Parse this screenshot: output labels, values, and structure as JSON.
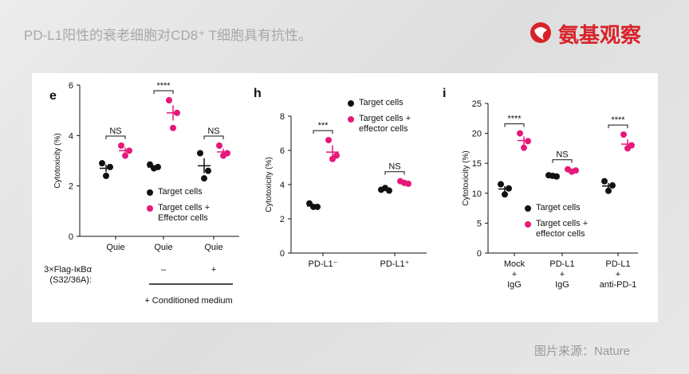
{
  "header": {
    "title": "PD-L1阳性的衰老细胞对CD8⁺ T细胞具有抗性。",
    "logo": "氨基观察"
  },
  "source": "图片来源：Nature",
  "chart_data": [
    {
      "type": "dot",
      "panel_label": "e",
      "ylabel": "Cytotoxicity (%)",
      "categories": [
        "Quie",
        "Quie",
        "Quie"
      ],
      "ylim": [
        0,
        6
      ],
      "yticks": [
        0,
        2,
        4,
        6
      ],
      "significance": [
        "NS",
        "****",
        "NS"
      ],
      "condition_label": "3×Flag-IκBα\n(S32/36A):",
      "condition_values": [
        null,
        "–",
        "+"
      ],
      "medium_label": "+ Conditioned medium",
      "series": [
        {
          "name": "Target cells",
          "color": "#111111",
          "values": [
            2.7,
            2.75,
            2.8
          ],
          "errors": [
            0.15,
            0.05,
            0.3
          ],
          "points": [
            [
              2.9,
              2.75,
              2.4
            ],
            [
              2.85,
              2.75,
              2.7
            ],
            [
              3.3,
              2.6,
              2.3
            ]
          ]
        },
        {
          "name": "Target cells +\nEffector cells",
          "color": "#e6197a",
          "values": [
            3.4,
            4.9,
            3.35
          ],
          "errors": [
            0.12,
            0.3,
            0.12
          ],
          "points": [
            [
              3.6,
              3.4,
              3.2
            ],
            [
              5.4,
              4.9,
              4.3
            ],
            [
              3.6,
              3.3,
              3.2
            ]
          ]
        }
      ]
    },
    {
      "type": "dot",
      "panel_label": "h",
      "ylabel": "Cytotoxicity (%)",
      "categories": [
        "PD-L1⁻",
        "PD-L1⁺"
      ],
      "ylim": [
        0,
        8
      ],
      "yticks": [
        0,
        2,
        4,
        6,
        8
      ],
      "significance": [
        "***",
        "NS"
      ],
      "series": [
        {
          "name": "Target cells",
          "color": "#111111",
          "values": [
            2.75,
            3.7
          ],
          "errors": [
            0.1,
            0.05
          ],
          "points": [
            [
              2.9,
              2.7,
              2.7
            ],
            [
              3.7,
              3.65,
              3.8
            ]
          ]
        },
        {
          "name": "Target cells +\neffector cells",
          "color": "#e6197a",
          "values": [
            5.9,
            4.1
          ],
          "errors": [
            0.4,
            0.05
          ],
          "points": [
            [
              6.6,
              5.7,
              5.5
            ],
            [
              4.2,
              4.05,
              4.1
            ]
          ]
        }
      ]
    },
    {
      "type": "dot",
      "panel_label": "i",
      "ylabel": "Cytotoxicity (%)",
      "categories": [
        "Mock\n+\nIgG",
        "PD-L1\n+\nIgG",
        "PD-L1\n+\nanti-PD-1"
      ],
      "ylim": [
        0,
        25
      ],
      "yticks": [
        0,
        5,
        10,
        15,
        20,
        25
      ],
      "significance": [
        "****",
        "NS",
        "****"
      ],
      "series": [
        {
          "name": "Target cells",
          "color": "#111111",
          "values": [
            10.7,
            12.9,
            11.2
          ],
          "errors": [
            0.5,
            0.1,
            0.5
          ],
          "points": [
            [
              11.5,
              10.8,
              9.8
            ],
            [
              13,
              12.8,
              12.9
            ],
            [
              12,
              11.3,
              10.4
            ]
          ]
        },
        {
          "name": "Target cells +\neffector cells",
          "color": "#e6197a",
          "values": [
            18.8,
            13.8,
            18.2
          ],
          "errors": [
            0.7,
            0.15,
            0.8
          ],
          "points": [
            [
              20,
              18.7,
              17.6
            ],
            [
              14,
              13.8,
              13.6
            ],
            [
              19.8,
              18,
              17.5
            ]
          ]
        }
      ]
    }
  ]
}
